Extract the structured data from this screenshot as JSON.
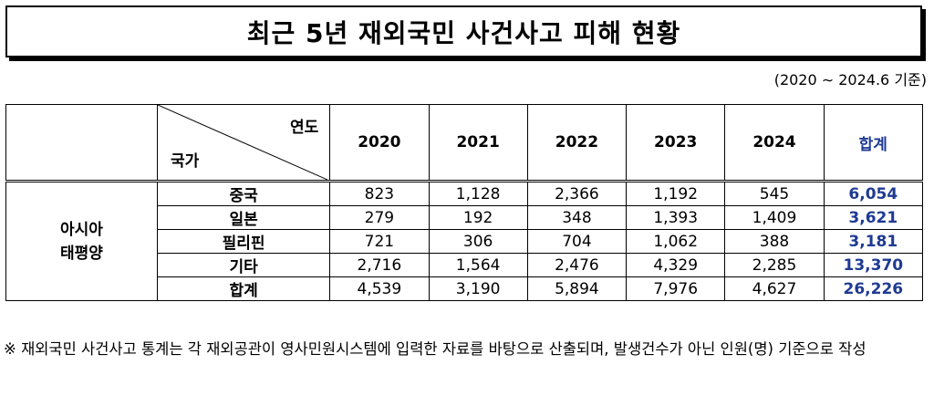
{
  "title": "최근 5년 재외국민 사건사고 피해 현황",
  "period": "(2020 ∼ 2024.6 기준)",
  "table": {
    "header_year_label": "연도",
    "header_country_label": "국가",
    "years": [
      "2020",
      "2021",
      "2022",
      "2023",
      "2024"
    ],
    "total_label": "합계",
    "region": [
      "아시아",
      "태평양"
    ],
    "rows": [
      {
        "country": "중국",
        "values": [
          "823",
          "1,128",
          "2,366",
          "1,192",
          "545"
        ],
        "total": "6,054"
      },
      {
        "country": "일본",
        "values": [
          "279",
          "192",
          "348",
          "1,393",
          "1,409"
        ],
        "total": "3,621"
      },
      {
        "country": "필리핀",
        "values": [
          "721",
          "306",
          "704",
          "1,062",
          "388"
        ],
        "total": "3,181"
      },
      {
        "country": "기타",
        "values": [
          "2,716",
          "1,564",
          "2,476",
          "4,329",
          "2,285"
        ],
        "total": "13,370"
      },
      {
        "country": "합계",
        "values": [
          "4,539",
          "3,190",
          "5,894",
          "7,976",
          "4,627"
        ],
        "total": "26,226"
      }
    ]
  },
  "footnote": "※ 재외국민 사건사고 통계는 각 재외공관이 영사민원시스템에 입력한 자료를 바탕으로 산출되며, 발생건수가 아닌 인원(명) 기준으로 작성",
  "colors": {
    "total_text": "#1f3a93"
  }
}
